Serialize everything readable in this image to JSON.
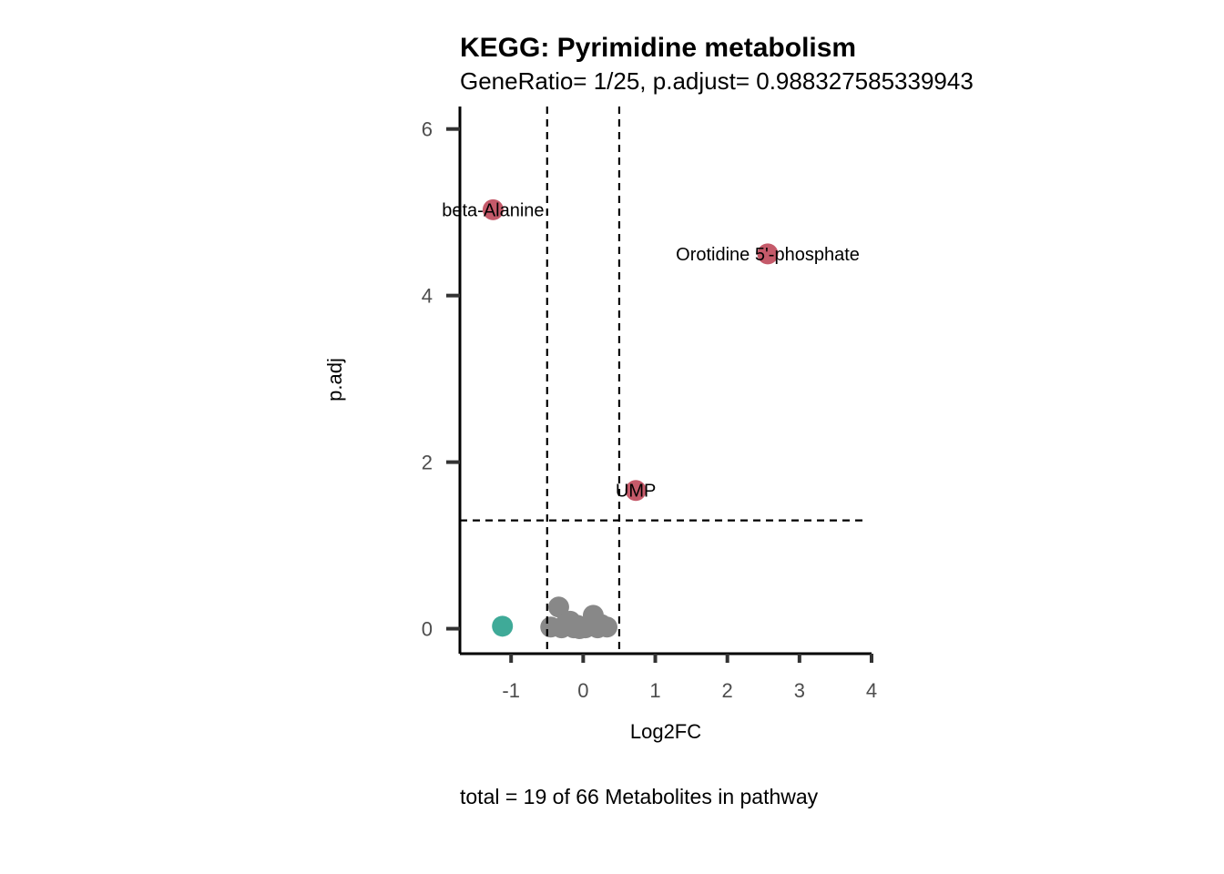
{
  "chart_data": {
    "type": "scatter",
    "title": "KEGG: Pyrimidine metabolism",
    "subtitle": "GeneRatio= 1/25, p.adjust= 0.988327585339943",
    "xlabel": "Log2FC",
    "ylabel": "p.adj",
    "caption": "total = 19 of 66 Metabolites in pathway",
    "xlim": [
      -1.71,
      4
    ],
    "ylim": [
      -0.3,
      6.27
    ],
    "xticks": [
      -1,
      0,
      1,
      2,
      3,
      4
    ],
    "xtick_labels": [
      "-1",
      "0",
      "1",
      "2",
      "3",
      "4"
    ],
    "yticks": [
      0,
      2,
      4,
      6
    ],
    "ytick_labels": [
      "0",
      "2",
      "4",
      "6"
    ],
    "thresholds": {
      "x": [
        -0.5,
        0.5
      ],
      "y": 1.3
    },
    "grid": false,
    "colors": {
      "up": "#C55A6A",
      "down": "#3FAA98",
      "ns": "#888888"
    },
    "points": [
      {
        "x": -1.25,
        "y": 5.03,
        "group": "up",
        "label": "beta-Alanine"
      },
      {
        "x": 2.56,
        "y": 4.5,
        "group": "up",
        "label": "Orotidine 5'-phosphate"
      },
      {
        "x": 0.73,
        "y": 1.66,
        "group": "up",
        "label": "UMP"
      },
      {
        "x": -1.12,
        "y": 0.03,
        "group": "down"
      },
      {
        "x": -0.34,
        "y": 0.26,
        "group": "ns"
      },
      {
        "x": 0.14,
        "y": 0.16,
        "group": "ns"
      },
      {
        "x": -0.45,
        "y": 0.02,
        "group": "ns"
      },
      {
        "x": -0.25,
        "y": 0.05,
        "group": "ns"
      },
      {
        "x": -0.18,
        "y": 0.09,
        "group": "ns"
      },
      {
        "x": -0.13,
        "y": 0.01,
        "group": "ns"
      },
      {
        "x": -0.05,
        "y": 0.0,
        "group": "ns"
      },
      {
        "x": 0.03,
        "y": 0.01,
        "group": "ns"
      },
      {
        "x": 0.09,
        "y": 0.03,
        "group": "ns"
      },
      {
        "x": 0.2,
        "y": 0.01,
        "group": "ns"
      },
      {
        "x": 0.25,
        "y": 0.05,
        "group": "ns"
      },
      {
        "x": 0.33,
        "y": 0.02,
        "group": "ns"
      },
      {
        "x": -0.3,
        "y": 0.01,
        "group": "ns"
      },
      {
        "x": 0.18,
        "y": 0.08,
        "group": "ns"
      },
      {
        "x": -0.08,
        "y": 0.04,
        "group": "ns"
      }
    ]
  }
}
